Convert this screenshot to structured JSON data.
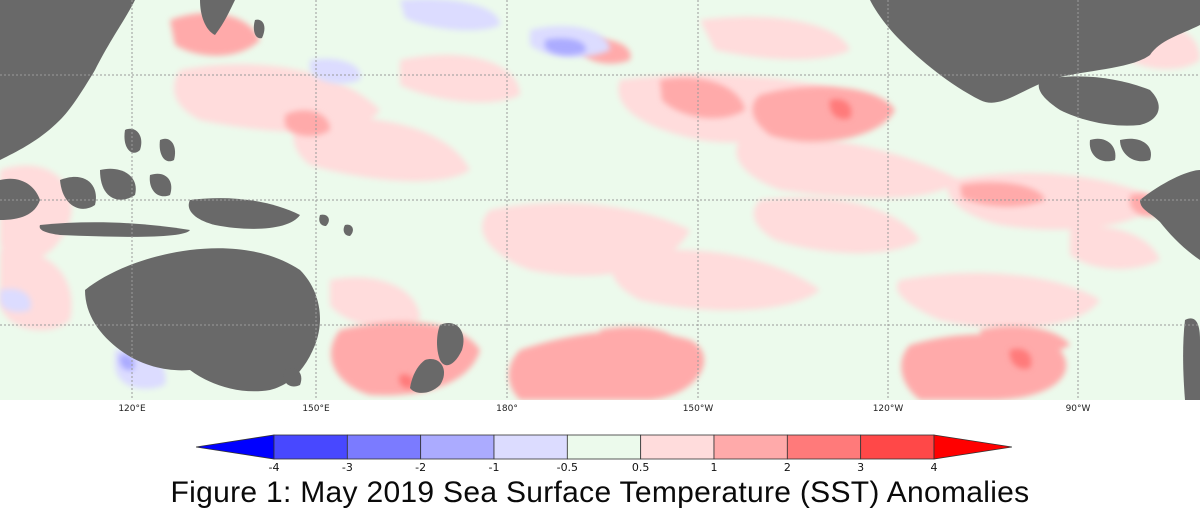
{
  "map": {
    "ocean_color": "#ecfaec",
    "land_color": "#696969",
    "grid_color": "#9a9a9a"
  },
  "longitude_labels": [
    "120°E",
    "150°E",
    "180°",
    "150°W",
    "120°W",
    "90°W"
  ],
  "colorbar": {
    "ticks": [
      "-4",
      "-3",
      "-2",
      "-1",
      "-0.5",
      "0.5",
      "1",
      "2",
      "3",
      "4"
    ],
    "colors": [
      "#0000ff",
      "#4848ff",
      "#7b7bff",
      "#ababff",
      "#dcdcff",
      "#ecfaec",
      "#ffdcdc",
      "#ffaaaa",
      "#ff7a7a",
      "#ff4848",
      "#ff0000"
    ]
  },
  "caption": "Figure 1: May 2019 Sea Surface Temperature (SST) Anomalies"
}
